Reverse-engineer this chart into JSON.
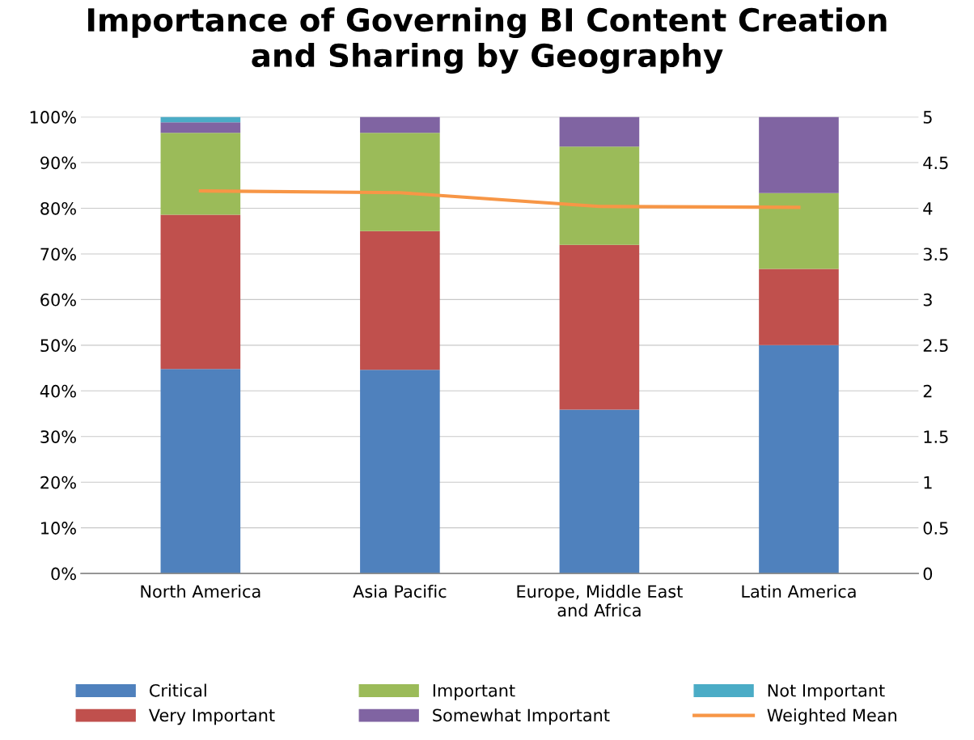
{
  "chart_data": {
    "type": "bar",
    "title": "Importance of Governing BI Content Creation\nand Sharing by Geography",
    "categories": [
      "North America",
      "Asia Pacific",
      "Europe, Middle East\nand Africa",
      "Latin America"
    ],
    "stacked": true,
    "series": [
      {
        "name": "Critical",
        "color": "#4f81bd",
        "values": [
          44.8,
          44.6,
          35.9,
          50
        ]
      },
      {
        "name": "Very Important",
        "color": "#c0504d",
        "values": [
          33.8,
          30.4,
          36.1,
          16.7
        ]
      },
      {
        "name": "Important",
        "color": "#9bbb59",
        "values": [
          17.9,
          21.5,
          21.5,
          16.6
        ]
      },
      {
        "name": "Somewhat Important",
        "color": "#8064a2",
        "values": [
          2.3,
          3.5,
          6.5,
          16.7
        ]
      },
      {
        "name": "Not Important",
        "color": "#4bacc6",
        "values": [
          1.2,
          0,
          0,
          0
        ]
      },
      {
        "name": "Weighted Mean",
        "color": "#f79646",
        "type": "line",
        "axis": "y2",
        "values": [
          4.19,
          4.17,
          4.02,
          4.01
        ]
      }
    ],
    "ylim": [
      0,
      100
    ],
    "yticks": [
      {
        "value": 0,
        "label": "0%"
      },
      {
        "value": 10,
        "label": "10%"
      },
      {
        "value": 20,
        "label": "20%"
      },
      {
        "value": 30,
        "label": "30%"
      },
      {
        "value": 40,
        "label": "40%"
      },
      {
        "value": 50,
        "label": "50%"
      },
      {
        "value": 60,
        "label": "60%"
      },
      {
        "value": 70,
        "label": "70%"
      },
      {
        "value": 80,
        "label": "80%"
      },
      {
        "value": 90,
        "label": "90%"
      },
      {
        "value": 100,
        "label": "100%"
      }
    ],
    "y2lim": [
      0,
      5
    ],
    "y2ticks": [
      0,
      0.5,
      1,
      1.5,
      2,
      2.5,
      3,
      3.5,
      4,
      4.5,
      5
    ],
    "grid": "y",
    "legend": "bottom",
    "marker": "none"
  }
}
